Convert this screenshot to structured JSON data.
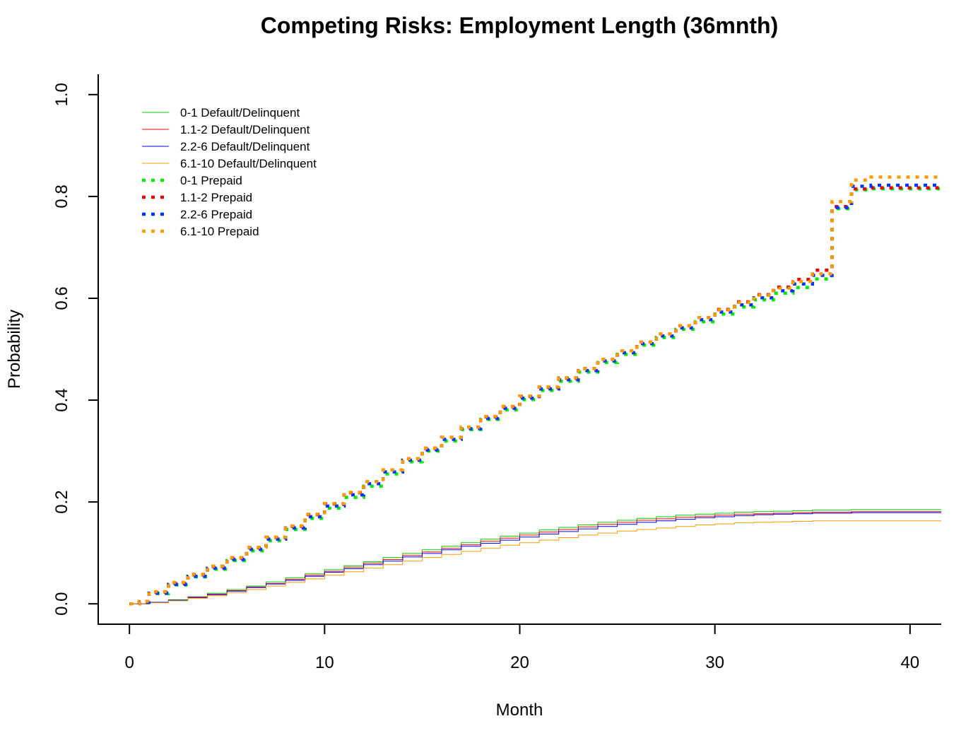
{
  "chart_data": {
    "type": "line",
    "title": "Competing Risks: Employment Length (36mnth)",
    "xlabel": "Month",
    "ylabel": "Probability",
    "xlim": [
      -1.6,
      41.6
    ],
    "ylim": [
      -0.04,
      1.04
    ],
    "xticks": [
      0,
      10,
      20,
      30,
      40
    ],
    "xtick_labels": [
      "0",
      "10",
      "20",
      "30",
      "40"
    ],
    "yticks": [
      0.0,
      0.2,
      0.4,
      0.6,
      0.8,
      1.0
    ],
    "ytick_labels": [
      "0.0",
      "0.2",
      "0.4",
      "0.6",
      "0.8",
      "1.0"
    ],
    "grid": false,
    "legend_position": "top-left",
    "step": true,
    "series": [
      {
        "name": "0-1 Default/Delinquent",
        "color": "#00cc00",
        "style": "solid",
        "x": [
          0,
          1,
          2,
          3,
          4,
          5,
          6,
          7,
          8,
          9,
          10,
          11,
          12,
          13,
          14,
          15,
          16,
          17,
          18,
          19,
          20,
          21,
          22,
          23,
          24,
          25,
          26,
          27,
          28,
          29,
          30,
          31,
          32,
          33,
          34,
          35,
          36,
          37,
          41.6
        ],
        "y": [
          0.0,
          0.003,
          0.008,
          0.014,
          0.021,
          0.028,
          0.035,
          0.043,
          0.051,
          0.059,
          0.067,
          0.075,
          0.083,
          0.091,
          0.099,
          0.106,
          0.113,
          0.12,
          0.127,
          0.133,
          0.139,
          0.145,
          0.15,
          0.155,
          0.16,
          0.164,
          0.168,
          0.171,
          0.174,
          0.176,
          0.178,
          0.18,
          0.181,
          0.182,
          0.183,
          0.184,
          0.184,
          0.185,
          0.185
        ]
      },
      {
        "name": "1.1-2 Default/Delinquent",
        "color": "#ff0000",
        "style": "solid",
        "x": [
          0,
          1,
          2,
          3,
          4,
          5,
          6,
          7,
          8,
          9,
          10,
          11,
          12,
          13,
          14,
          15,
          16,
          17,
          18,
          19,
          20,
          21,
          22,
          23,
          24,
          25,
          26,
          27,
          28,
          29,
          30,
          31,
          32,
          33,
          34,
          35,
          36,
          37,
          41.6
        ],
        "y": [
          0.0,
          0.003,
          0.007,
          0.013,
          0.019,
          0.026,
          0.033,
          0.04,
          0.048,
          0.056,
          0.064,
          0.072,
          0.08,
          0.087,
          0.095,
          0.102,
          0.109,
          0.116,
          0.123,
          0.129,
          0.135,
          0.141,
          0.146,
          0.151,
          0.156,
          0.16,
          0.164,
          0.167,
          0.17,
          0.172,
          0.174,
          0.176,
          0.177,
          0.178,
          0.179,
          0.18,
          0.18,
          0.181,
          0.181
        ]
      },
      {
        "name": "2.2-6 Default/Delinquent",
        "color": "#0000ff",
        "style": "solid",
        "x": [
          0,
          1,
          2,
          3,
          4,
          5,
          6,
          7,
          8,
          9,
          10,
          11,
          12,
          13,
          14,
          15,
          16,
          17,
          18,
          19,
          20,
          21,
          22,
          23,
          24,
          25,
          26,
          27,
          28,
          29,
          30,
          31,
          32,
          33,
          34,
          35,
          36,
          37,
          41.6
        ],
        "y": [
          0.0,
          0.003,
          0.007,
          0.012,
          0.018,
          0.025,
          0.032,
          0.039,
          0.046,
          0.054,
          0.062,
          0.069,
          0.077,
          0.084,
          0.092,
          0.099,
          0.106,
          0.113,
          0.119,
          0.125,
          0.131,
          0.137,
          0.142,
          0.147,
          0.152,
          0.156,
          0.16,
          0.163,
          0.166,
          0.169,
          0.171,
          0.173,
          0.175,
          0.176,
          0.177,
          0.178,
          0.178,
          0.179,
          0.179
        ]
      },
      {
        "name": "6.1-10 Default/Delinquent",
        "color": "#ff9900",
        "style": "solid",
        "x": [
          0,
          1,
          2,
          3,
          4,
          5,
          6,
          7,
          8,
          9,
          10,
          11,
          12,
          13,
          14,
          15,
          16,
          17,
          18,
          19,
          20,
          21,
          22,
          23,
          24,
          25,
          26,
          27,
          28,
          29,
          30,
          31,
          32,
          33,
          34,
          35,
          36,
          37,
          41.6
        ],
        "y": [
          0.0,
          0.002,
          0.006,
          0.011,
          0.016,
          0.022,
          0.028,
          0.035,
          0.042,
          0.049,
          0.056,
          0.063,
          0.07,
          0.077,
          0.084,
          0.091,
          0.097,
          0.103,
          0.109,
          0.115,
          0.12,
          0.125,
          0.13,
          0.135,
          0.139,
          0.143,
          0.146,
          0.149,
          0.152,
          0.155,
          0.157,
          0.159,
          0.16,
          0.161,
          0.162,
          0.163,
          0.163,
          0.163,
          0.163
        ]
      },
      {
        "name": "0-1 Prepaid",
        "color": "#00ee00",
        "style": "dotted",
        "x": [
          0,
          0.5,
          1,
          2,
          3,
          4,
          5,
          6,
          7,
          8,
          9,
          10,
          11,
          12,
          13,
          14,
          15,
          16,
          17,
          18,
          19,
          20,
          21,
          22,
          23,
          24,
          25,
          26,
          27,
          28,
          29,
          30,
          31,
          32,
          33,
          34,
          35,
          36,
          37,
          38,
          41.6
        ],
        "y": [
          0.0,
          0.003,
          0.02,
          0.037,
          0.053,
          0.068,
          0.085,
          0.104,
          0.124,
          0.146,
          0.168,
          0.188,
          0.209,
          0.231,
          0.255,
          0.279,
          0.3,
          0.32,
          0.342,
          0.362,
          0.381,
          0.401,
          0.419,
          0.437,
          0.455,
          0.474,
          0.49,
          0.508,
          0.523,
          0.539,
          0.554,
          0.569,
          0.583,
          0.597,
          0.61,
          0.621,
          0.638,
          0.776,
          0.813,
          0.815,
          0.815
        ]
      },
      {
        "name": "1.1-2 Prepaid",
        "color": "#ee0000",
        "style": "dotted",
        "x": [
          0,
          0.5,
          1,
          2,
          3,
          4,
          5,
          6,
          7,
          8,
          9,
          10,
          11,
          12,
          13,
          14,
          15,
          16,
          17,
          18,
          19,
          20,
          21,
          22,
          23,
          24,
          25,
          26,
          27,
          28,
          29,
          30,
          31,
          32,
          33,
          34,
          35,
          36,
          37,
          38,
          41.6
        ],
        "y": [
          0.0,
          0.004,
          0.023,
          0.04,
          0.057,
          0.073,
          0.09,
          0.11,
          0.13,
          0.152,
          0.175,
          0.196,
          0.218,
          0.24,
          0.263,
          0.285,
          0.305,
          0.327,
          0.347,
          0.367,
          0.387,
          0.407,
          0.425,
          0.443,
          0.462,
          0.48,
          0.497,
          0.514,
          0.53,
          0.546,
          0.562,
          0.578,
          0.593,
          0.607,
          0.622,
          0.637,
          0.655,
          0.78,
          0.815,
          0.817,
          0.817
        ]
      },
      {
        "name": "2.2-6 Prepaid",
        "color": "#0033ff",
        "style": "dotted",
        "x": [
          0,
          0.5,
          1,
          2,
          3,
          4,
          5,
          6,
          7,
          8,
          9,
          10,
          11,
          12,
          13,
          14,
          15,
          16,
          17,
          18,
          19,
          20,
          21,
          22,
          23,
          24,
          25,
          26,
          27,
          28,
          29,
          30,
          31,
          32,
          33,
          34,
          35,
          36,
          37,
          38,
          41.6
        ],
        "y": [
          0.0,
          0.003,
          0.021,
          0.038,
          0.054,
          0.07,
          0.087,
          0.107,
          0.127,
          0.149,
          0.171,
          0.192,
          0.214,
          0.236,
          0.259,
          0.282,
          0.302,
          0.323,
          0.344,
          0.364,
          0.384,
          0.404,
          0.422,
          0.44,
          0.458,
          0.477,
          0.493,
          0.511,
          0.526,
          0.542,
          0.558,
          0.573,
          0.587,
          0.601,
          0.615,
          0.628,
          0.645,
          0.778,
          0.82,
          0.822,
          0.822
        ]
      },
      {
        "name": "6.1-10 Prepaid",
        "color": "#ff9900",
        "style": "dotted",
        "x": [
          0,
          0.5,
          1,
          2,
          3,
          4,
          5,
          6,
          7,
          8,
          9,
          10,
          11,
          12,
          13,
          14,
          15,
          16,
          17,
          18,
          19,
          20,
          21,
          22,
          23,
          24,
          25,
          26,
          27,
          28,
          29,
          30,
          31,
          32,
          33,
          34,
          35,
          36,
          37,
          38,
          41.6
        ],
        "y": [
          0.0,
          0.005,
          0.024,
          0.042,
          0.058,
          0.074,
          0.091,
          0.111,
          0.131,
          0.153,
          0.176,
          0.197,
          0.219,
          0.24,
          0.263,
          0.285,
          0.306,
          0.327,
          0.347,
          0.368,
          0.388,
          0.408,
          0.426,
          0.444,
          0.462,
          0.48,
          0.497,
          0.514,
          0.53,
          0.546,
          0.562,
          0.577,
          0.592,
          0.606,
          0.62,
          0.633,
          0.648,
          0.79,
          0.832,
          0.838,
          0.838
        ]
      }
    ]
  }
}
